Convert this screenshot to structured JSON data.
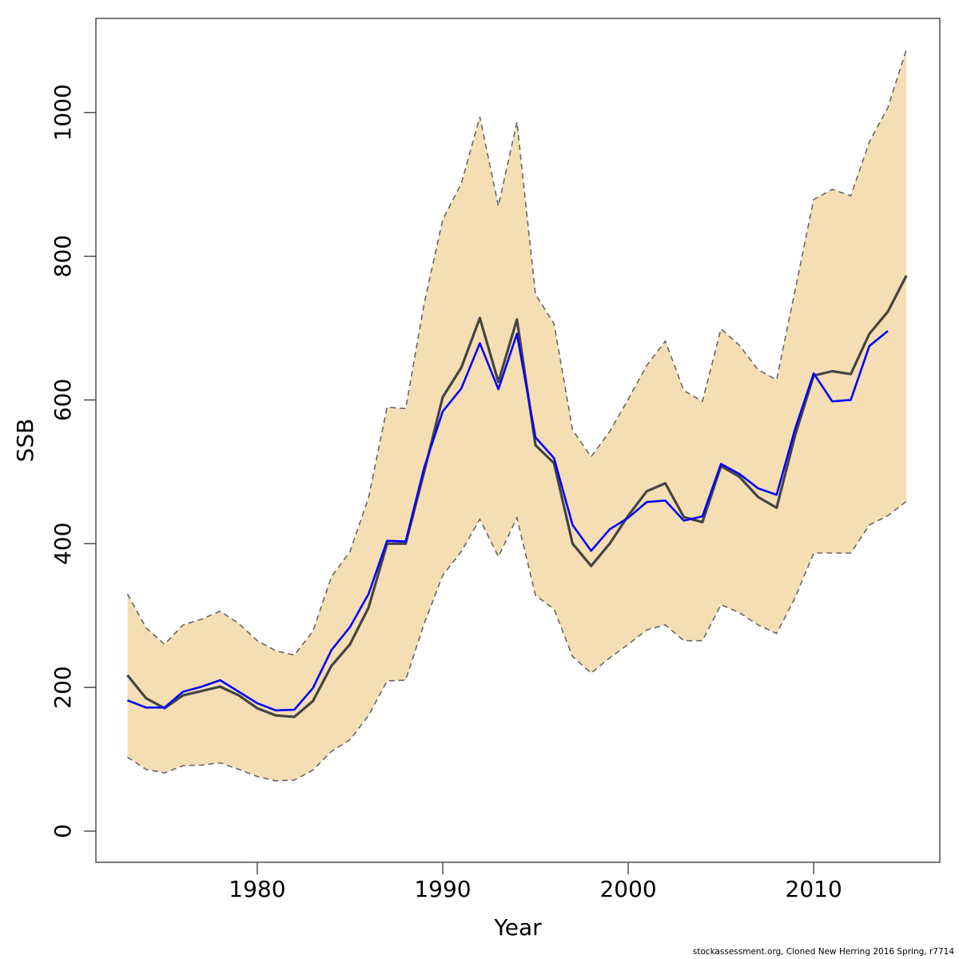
{
  "chart_data": {
    "type": "line",
    "xlabel": "Year",
    "ylabel": "SSB",
    "footnote": "stockassessment.org, Cloned New Herring 2016 Spring, r7714",
    "x": [
      1973,
      1974,
      1975,
      1976,
      1977,
      1978,
      1979,
      1980,
      1981,
      1982,
      1983,
      1984,
      1985,
      1986,
      1987,
      1988,
      1989,
      1990,
      1991,
      1992,
      1993,
      1994,
      1995,
      1996,
      1997,
      1998,
      1999,
      2000,
      2001,
      2002,
      2003,
      2004,
      2005,
      2006,
      2007,
      2008,
      2009,
      2010,
      2011,
      2012,
      2013,
      2014,
      2015
    ],
    "band": {
      "color": "#f5deb3",
      "edge_color": "#666666",
      "upper": [
        330,
        283,
        260,
        287,
        295,
        306,
        289,
        265,
        251,
        245,
        278,
        354,
        389,
        464,
        590,
        588,
        734,
        851,
        901,
        994,
        870,
        987,
        747,
        706,
        558,
        521,
        556,
        601,
        648,
        682,
        613,
        598,
        699,
        676,
        642,
        628,
        753,
        879,
        893,
        884,
        959,
        1007,
        1088
      ],
      "lower": [
        103,
        86,
        81,
        91,
        92,
        95,
        86,
        76,
        70,
        71,
        85,
        111,
        127,
        161,
        209,
        210,
        289,
        356,
        389,
        434,
        382,
        436,
        328,
        309,
        243,
        220,
        241,
        260,
        280,
        287,
        265,
        265,
        315,
        304,
        287,
        275,
        325,
        387,
        387,
        387,
        426,
        439,
        459
      ]
    },
    "series": [
      {
        "color": "#444444",
        "values": [
          217,
          185,
          171,
          189,
          195,
          201,
          189,
          171,
          161,
          159,
          181,
          230,
          260,
          311,
          400,
          400,
          500,
          604,
          645,
          714,
          625,
          712,
          537,
          512,
          400,
          369,
          400,
          439,
          473,
          484,
          437,
          430,
          508,
          493,
          465,
          450,
          551,
          634,
          640,
          636,
          692,
          723,
          773
        ]
      },
      {
        "color": "#0000ff",
        "values": [
          182,
          172,
          172,
          194,
          201,
          210,
          194,
          178,
          168,
          169,
          199,
          252,
          284,
          330,
          404,
          403,
          506,
          584,
          616,
          679,
          615,
          692,
          548,
          519,
          426,
          390,
          420,
          436,
          458,
          460,
          432,
          438,
          511,
          497,
          477,
          468,
          560,
          637,
          598,
          600,
          675,
          696,
          null
        ]
      }
    ],
    "xlim": [
      1971.3,
      2016.8
    ],
    "ylim": [
      -43.4,
      1131
    ],
    "xticks": [
      1980,
      1990,
      2000,
      2010
    ],
    "yticks": [
      0,
      200,
      400,
      600,
      800,
      1000
    ]
  }
}
